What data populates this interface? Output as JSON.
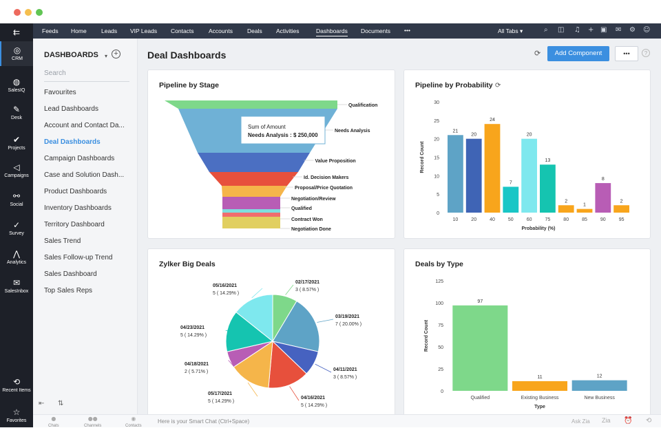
{
  "window": {
    "traffic_colors": [
      "#ed6a5e",
      "#f5bf4f",
      "#61c554"
    ]
  },
  "rail": {
    "items": [
      {
        "icon": "menu-collapse-icon",
        "glyph": "⇇",
        "label": ""
      },
      {
        "icon": "crm-icon",
        "glyph": "◎",
        "label": "CRM"
      },
      {
        "icon": "salesiq-icon",
        "glyph": "◍",
        "label": "SalesIQ"
      },
      {
        "icon": "desk-icon",
        "glyph": "✎",
        "label": "Desk"
      },
      {
        "icon": "projects-icon",
        "glyph": "✔",
        "label": "Projects"
      },
      {
        "icon": "campaigns-icon",
        "glyph": "◁",
        "label": "Campaigns"
      },
      {
        "icon": "social-icon",
        "glyph": "⚯",
        "label": "Social"
      },
      {
        "icon": "survey-icon",
        "glyph": "✓",
        "label": "Survey"
      },
      {
        "icon": "analytics-icon",
        "glyph": "⋀",
        "label": "Analytics"
      },
      {
        "icon": "salesinbox-icon",
        "glyph": "✉",
        "label": "SalesInbox"
      },
      {
        "icon": "recent-items-icon",
        "glyph": "⟲",
        "label": "Recent Items"
      },
      {
        "icon": "favorites-icon",
        "glyph": "☆",
        "label": "Favorites"
      }
    ]
  },
  "topnav": {
    "items": [
      "Feeds",
      "Home",
      "Leads",
      "VIP Leads",
      "Contacts",
      "Accounts",
      "Deals",
      "Activities",
      "Dashboards",
      "Documents"
    ],
    "active": "Dashboards",
    "more": "•••",
    "all_tabs": "All Tabs ▾",
    "right_icons": [
      {
        "name": "search-icon",
        "glyph": "⌕"
      },
      {
        "name": "game-icon",
        "glyph": "◫"
      },
      {
        "name": "bell-icon",
        "glyph": "♫"
      },
      {
        "name": "plus-icon",
        "glyph": "+"
      },
      {
        "name": "calendar-icon",
        "glyph": "▣"
      },
      {
        "name": "mail-icon",
        "glyph": "✉"
      },
      {
        "name": "settings-icon",
        "glyph": "⚙"
      },
      {
        "name": "avatar-icon",
        "glyph": "☺"
      }
    ]
  },
  "sidebar": {
    "title": "DASHBOARDS",
    "search_placeholder": "Search",
    "items": [
      "Favourites",
      "Lead Dashboards",
      "Account and Contact Da...",
      "Deal Dashboards",
      "Campaign Dashboards",
      "Case and Solution Dash...",
      "Product Dashboards",
      "Inventory Dashboards",
      "Territory Dashboard",
      "Sales Trend",
      "Sales Follow-up Trend",
      "Sales Dashboard",
      "Top Sales Reps"
    ],
    "active_index": 3
  },
  "header": {
    "title": "Deal Dashboards",
    "add_component": "Add Component",
    "more": "•••",
    "refresh_icon": "⟳",
    "help_icon": "?"
  },
  "bottom": {
    "chats": "Chats",
    "channels": "Channels",
    "contacts": "Contacts",
    "smart_chat": "Here is your Smart Chat (Ctrl+Space)",
    "ask_zia": "Ask Zia"
  },
  "colors": {
    "accent": "#3b8fe0",
    "nav_bg": "#313949",
    "rail_bg": "#1d2028"
  },
  "chart_data": [
    {
      "type": "funnel",
      "title": "Pipeline by Stage",
      "tooltip": {
        "line1": "Sum of Amount",
        "line2": "Needs Analysis : $ 250,000"
      },
      "stages": [
        {
          "name": "Qualification",
          "color": "#7ed88a"
        },
        {
          "name": "Needs Analysis",
          "color": "#6fb1d6"
        },
        {
          "name": "Value Proposition",
          "color": "#4b6fc2"
        },
        {
          "name": "Id. Decision Makers",
          "color": "#e7503c"
        },
        {
          "name": "Proposal/Price Quotation",
          "color": "#f5b54a"
        },
        {
          "name": "Negotiation/Review",
          "color": "#b85db5"
        },
        {
          "name": "Qualified",
          "color": "#7fdede"
        },
        {
          "name": "Contract Won",
          "color": "#f06d6d"
        },
        {
          "name": "Negotiation Done",
          "color": "#e1cf60"
        }
      ]
    },
    {
      "type": "bar",
      "title": "Pipeline by Probability",
      "xlabel": "Probability (%)",
      "ylabel": "Record Count",
      "ylim": [
        0,
        30
      ],
      "yticks": [
        0,
        5,
        10,
        15,
        20,
        25,
        30
      ],
      "categories": [
        "10",
        "20",
        "40",
        "50",
        "60",
        "75",
        "80",
        "85",
        "90",
        "95"
      ],
      "values": [
        21,
        20,
        24,
        7,
        20,
        13,
        2,
        1,
        8,
        2
      ],
      "colors": [
        "#5ea3c6",
        "#3f64b5",
        "#f8a51c",
        "#19c6c6",
        "#7ee8ee",
        "#15c4b0",
        "#f8a51c",
        "#f8a51c",
        "#b85db5",
        "#f8a51c"
      ]
    },
    {
      "type": "pie",
      "title": "Zylker Big Deals",
      "slices": [
        {
          "label": "02/17/2021",
          "value": "3 ( 8.57% )",
          "pct": 8.57,
          "color": "#7ed88a"
        },
        {
          "label": "03/19/2021",
          "value": "7 ( 20.00% )",
          "pct": 20.0,
          "color": "#5ea3c6"
        },
        {
          "label": "04/11/2021",
          "value": "3 ( 8.57% )",
          "pct": 8.57,
          "color": "#4662c0"
        },
        {
          "label": "04/16/2021",
          "value": "5 ( 14.29% )",
          "pct": 14.29,
          "color": "#e7503c"
        },
        {
          "label": "05/17/2021",
          "value": "5 ( 14.29% )",
          "pct": 14.29,
          "color": "#f5b54a"
        },
        {
          "label": "04/18/2021",
          "value": "2 ( 5.71% )",
          "pct": 5.71,
          "color": "#b85db5"
        },
        {
          "label": "04/23/2021",
          "value": "5 ( 14.29% )",
          "pct": 14.29,
          "color": "#15c4b0"
        },
        {
          "label": "05/16/2021",
          "value": "5 ( 14.29% )",
          "pct": 14.29,
          "color": "#7ee8ee"
        }
      ]
    },
    {
      "type": "bar",
      "title": "Deals by Type",
      "xlabel": "Type",
      "ylabel": "Record Count",
      "ylim": [
        0,
        125
      ],
      "yticks": [
        0,
        25,
        50,
        75,
        100,
        125
      ],
      "categories": [
        "Qualified",
        "Existing Business",
        "New Business"
      ],
      "values": [
        97,
        11,
        12
      ],
      "colors": [
        "#7ed88a",
        "#f8a51c",
        "#5ea3c6"
      ]
    }
  ]
}
